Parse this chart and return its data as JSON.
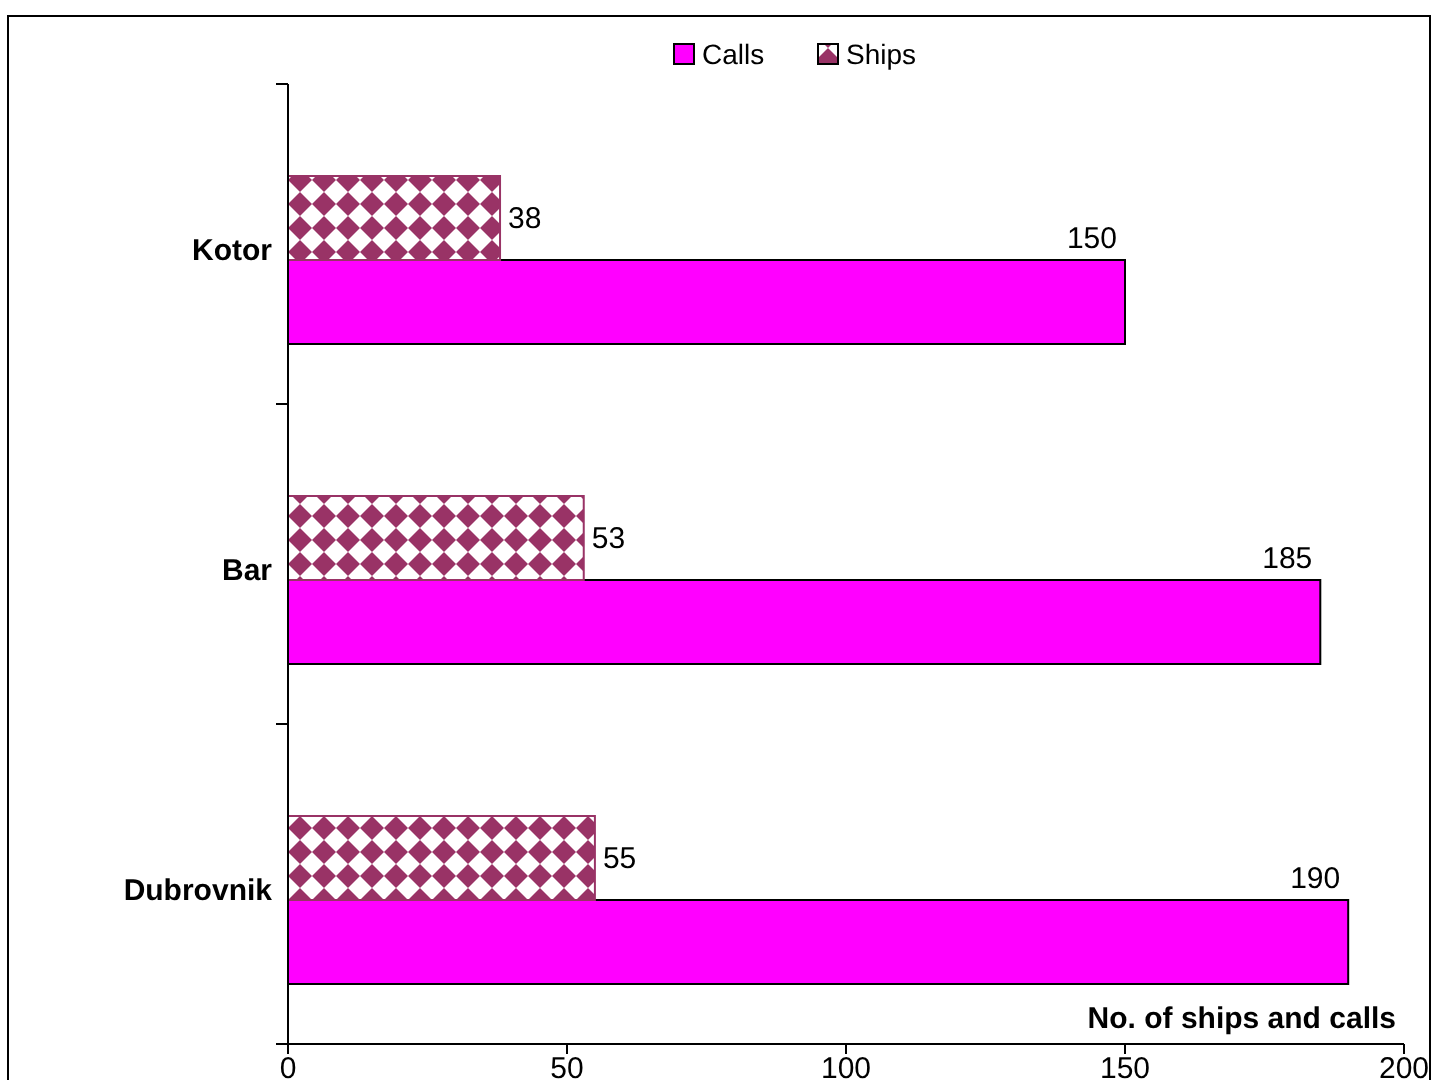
{
  "chart_data": {
    "type": "bar",
    "orientation": "horizontal",
    "xlabel": "No. of ships and calls",
    "categories": [
      "Kotor",
      "Bar",
      "Dubrovnik"
    ],
    "series": [
      {
        "name": "Calls",
        "color": "#ff00ff",
        "values": [
          150,
          185,
          190
        ]
      },
      {
        "name": "Ships",
        "color": "#993366",
        "values": [
          38,
          53,
          55
        ]
      }
    ],
    "xlim": [
      0,
      200
    ],
    "xticks": [
      0,
      50,
      100,
      150,
      200
    ],
    "legend": "top",
    "data_labels": true
  }
}
